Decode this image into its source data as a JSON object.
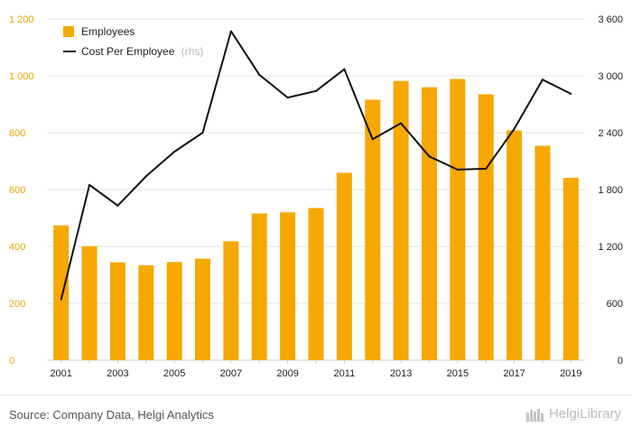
{
  "chart_data": {
    "type": "bar",
    "categories": [
      "2001",
      "2002",
      "2003",
      "2004",
      "2005",
      "2006",
      "2007",
      "2008",
      "2009",
      "2010",
      "2011",
      "2012",
      "2013",
      "2014",
      "2015",
      "2016",
      "2017",
      "2018",
      "2019"
    ],
    "x_tick_labels": [
      "2001",
      "2003",
      "2005",
      "2007",
      "2009",
      "2011",
      "2013",
      "2015",
      "2017",
      "2019"
    ],
    "series": [
      {
        "name": "Employees",
        "type": "bar",
        "axis": "left",
        "color": "#f5a800",
        "values": [
          474,
          401,
          344,
          334,
          345,
          357,
          418,
          516,
          520,
          535,
          659,
          916,
          982,
          960,
          989,
          935,
          808,
          754,
          641
        ]
      },
      {
        "name": "Cost Per Employee",
        "name_suffix": "(rhs)",
        "type": "line",
        "axis": "right",
        "color": "#111111",
        "values": [
          640,
          1850,
          1630,
          1940,
          2200,
          2400,
          3470,
          3010,
          2770,
          2840,
          3070,
          2330,
          2500,
          2150,
          2010,
          2020,
          2440,
          2960,
          2810
        ]
      }
    ],
    "y_left": {
      "ylim": [
        0,
        1200
      ],
      "ticks": [
        "0",
        "200",
        "400",
        "600",
        "800",
        "1 000",
        "1 200"
      ],
      "tick_values": [
        0,
        200,
        400,
        600,
        800,
        1000,
        1200
      ]
    },
    "y_right": {
      "ylim": [
        0,
        3600
      ],
      "ticks": [
        "0",
        "600",
        "1 200",
        "1 800",
        "2 400",
        "3 000",
        "3 600"
      ],
      "tick_values": [
        0,
        600,
        1200,
        1800,
        2400,
        3000,
        3600
      ]
    },
    "grid": true,
    "legend_position": "top-left"
  },
  "footer": {
    "source": "Source: Company Data, Helgi Analytics",
    "brand": "HelgiLibrary"
  },
  "colors": {
    "bar": "#f5a800",
    "line": "#111111",
    "left_axis_text": "#e8a500",
    "grid": "#e6e6e6"
  },
  "icons": {
    "brand": "library-books-icon"
  }
}
